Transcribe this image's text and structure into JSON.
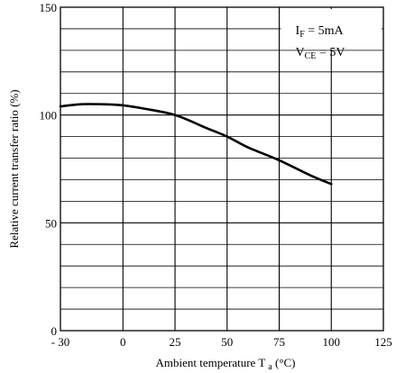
{
  "chart_data": {
    "type": "line",
    "title": "",
    "xlabel": "Ambient temperature T",
    "xlabel_sub": "a",
    "xlabel_unit": "(°C)",
    "ylabel": "Relative current transfer ratio (%)",
    "xlim": [
      -30,
      125
    ],
    "ylim": [
      0,
      150
    ],
    "x_ticks": [
      -30,
      0,
      25,
      50,
      75,
      100,
      125
    ],
    "x_tick_labels": [
      "- 30",
      "0",
      "25",
      "50",
      "75",
      "100",
      "125"
    ],
    "y_ticks": [
      0,
      50,
      100,
      150
    ],
    "y_tick_labels": [
      "0",
      "50",
      "100",
      "150"
    ],
    "grid": true,
    "conditions": [
      {
        "main": "I",
        "sub": "F",
        "rest": " = 5mA"
      },
      {
        "main": "V",
        "sub": "CE",
        "rest": " = 5V"
      }
    ],
    "series": [
      {
        "x": [
          -30,
          -20,
          -10,
          0,
          10,
          25,
          40,
          50,
          60,
          75,
          90,
          100
        ],
        "values": [
          104,
          105,
          105,
          104.5,
          103,
          100,
          94,
          90,
          85,
          79,
          72,
          68
        ]
      }
    ]
  }
}
